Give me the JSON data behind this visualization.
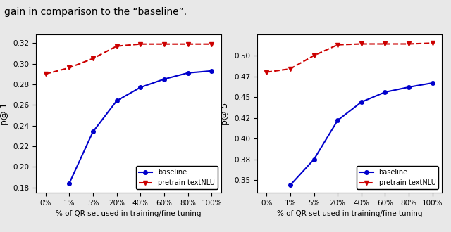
{
  "x_labels": [
    "0%",
    "1%",
    "5%",
    "20%",
    "40%",
    "60%",
    "80%",
    "100%"
  ],
  "x_positions": [
    0,
    1,
    2,
    3,
    4,
    5,
    6,
    7
  ],
  "left": {
    "ylabel": "p@ 1",
    "xlabel": "% of QR set used in training/fine tuning",
    "baseline_y": [
      null,
      0.184,
      0.234,
      0.264,
      0.277,
      0.285,
      0.291,
      0.293
    ],
    "pretrain_y": [
      0.29,
      0.296,
      0.305,
      0.317,
      0.319,
      0.319,
      0.319,
      0.319
    ],
    "ylim": [
      0.175,
      0.328
    ],
    "yticks": [
      0.18,
      0.2,
      0.22,
      0.24,
      0.26,
      0.28,
      0.3,
      0.32
    ]
  },
  "right": {
    "ylabel": "p@ 5",
    "xlabel": "% of QR set used in training/fine tuning",
    "baseline_y": [
      null,
      0.344,
      0.375,
      0.422,
      0.444,
      0.456,
      0.462,
      0.467
    ],
    "pretrain_y": [
      0.48,
      0.484,
      0.5,
      0.513,
      0.514,
      0.514,
      0.514,
      0.515
    ],
    "ylim": [
      0.335,
      0.525
    ],
    "yticks": [
      0.35,
      0.375,
      0.4,
      0.425,
      0.45,
      0.475,
      0.5
    ]
  },
  "baseline_color": "#0000cc",
  "pretrain_color": "#cc0000",
  "baseline_label": "baseline",
  "pretrain_label": "pretrain textNLU",
  "legend_loc": "lower right",
  "top_text": "gain in comparison to the “baseline”.",
  "fig_facecolor": "#e8e8e8",
  "ax_facecolor": "#ffffff"
}
